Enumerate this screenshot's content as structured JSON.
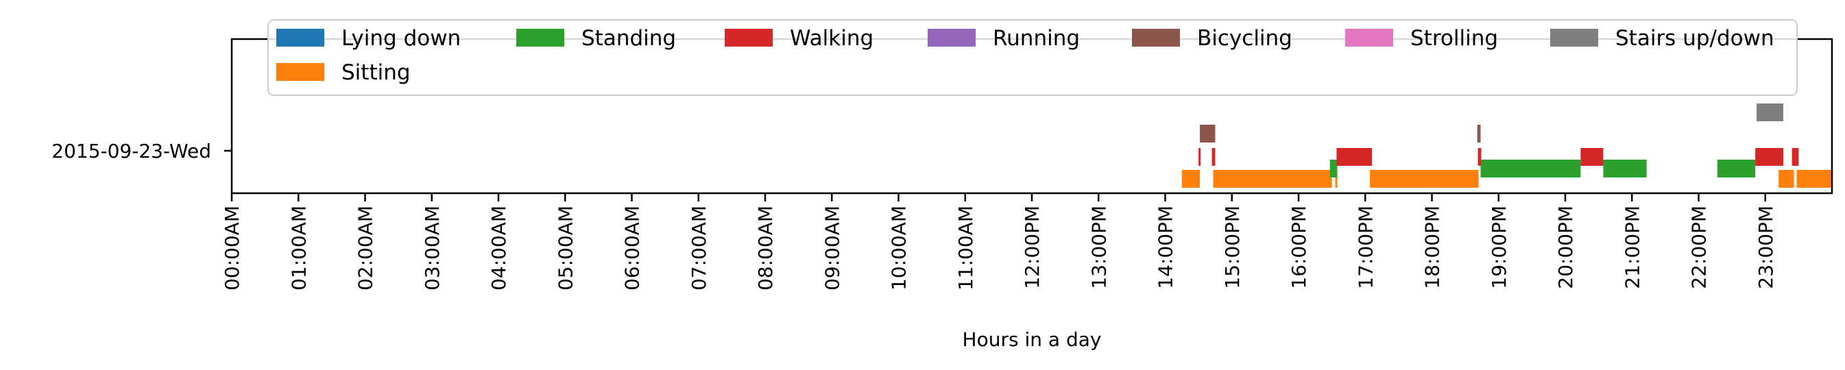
{
  "chart_data": {
    "type": "timeline",
    "title": "",
    "xlabel": "Hours in a day",
    "ylabel": "",
    "xlim": [
      0,
      24
    ],
    "day_label": "2015-09-23-Wed",
    "x_ticks": [
      {
        "hour": 0,
        "label": "00:00AM"
      },
      {
        "hour": 1,
        "label": "01:00AM"
      },
      {
        "hour": 2,
        "label": "02:00AM"
      },
      {
        "hour": 3,
        "label": "03:00AM"
      },
      {
        "hour": 4,
        "label": "04:00AM"
      },
      {
        "hour": 5,
        "label": "05:00AM"
      },
      {
        "hour": 6,
        "label": "06:00AM"
      },
      {
        "hour": 7,
        "label": "07:00AM"
      },
      {
        "hour": 8,
        "label": "08:00AM"
      },
      {
        "hour": 9,
        "label": "09:00AM"
      },
      {
        "hour": 10,
        "label": "10:00AM"
      },
      {
        "hour": 11,
        "label": "11:00AM"
      },
      {
        "hour": 12,
        "label": "12:00PM"
      },
      {
        "hour": 13,
        "label": "13:00PM"
      },
      {
        "hour": 14,
        "label": "14:00PM"
      },
      {
        "hour": 15,
        "label": "15:00PM"
      },
      {
        "hour": 16,
        "label": "16:00PM"
      },
      {
        "hour": 17,
        "label": "17:00PM"
      },
      {
        "hour": 18,
        "label": "18:00PM"
      },
      {
        "hour": 19,
        "label": "19:00PM"
      },
      {
        "hour": 20,
        "label": "20:00PM"
      },
      {
        "hour": 21,
        "label": "21:00PM"
      },
      {
        "hour": 22,
        "label": "22:00PM"
      },
      {
        "hour": 23,
        "label": "23:00PM"
      }
    ],
    "legend_position": "top",
    "series": [
      {
        "name": "Lying down",
        "color": "#1f77b4",
        "intervals": []
      },
      {
        "name": "Sitting",
        "color": "#ff7f0e",
        "intervals": [
          [
            14.25,
            14.52
          ],
          [
            14.72,
            16.5
          ],
          [
            16.55,
            16.58
          ],
          [
            17.07,
            18.7
          ],
          [
            23.2,
            23.43
          ],
          [
            23.47,
            24.0
          ]
        ]
      },
      {
        "name": "Standing",
        "color": "#2ca02c",
        "intervals": [
          [
            16.47,
            16.58
          ],
          [
            18.73,
            20.23
          ],
          [
            20.57,
            21.22
          ],
          [
            22.28,
            22.85
          ]
        ]
      },
      {
        "name": "Walking",
        "color": "#d62728",
        "intervals": [
          [
            14.5,
            14.53
          ],
          [
            14.7,
            14.75
          ],
          [
            16.57,
            17.1
          ],
          [
            18.69,
            18.74
          ],
          [
            20.23,
            20.57
          ],
          [
            22.85,
            23.27
          ],
          [
            23.4,
            23.5
          ]
        ]
      },
      {
        "name": "Running",
        "color": "#9467bd",
        "intervals": []
      },
      {
        "name": "Bicycling",
        "color": "#8c564b",
        "intervals": [
          [
            14.52,
            14.75
          ],
          [
            18.68,
            18.73
          ]
        ]
      },
      {
        "name": "Strolling",
        "color": "#e377c2",
        "intervals": []
      },
      {
        "name": "Stairs up/down",
        "color": "#7f7f7f",
        "intervals": [
          [
            22.87,
            23.27
          ]
        ]
      }
    ]
  }
}
